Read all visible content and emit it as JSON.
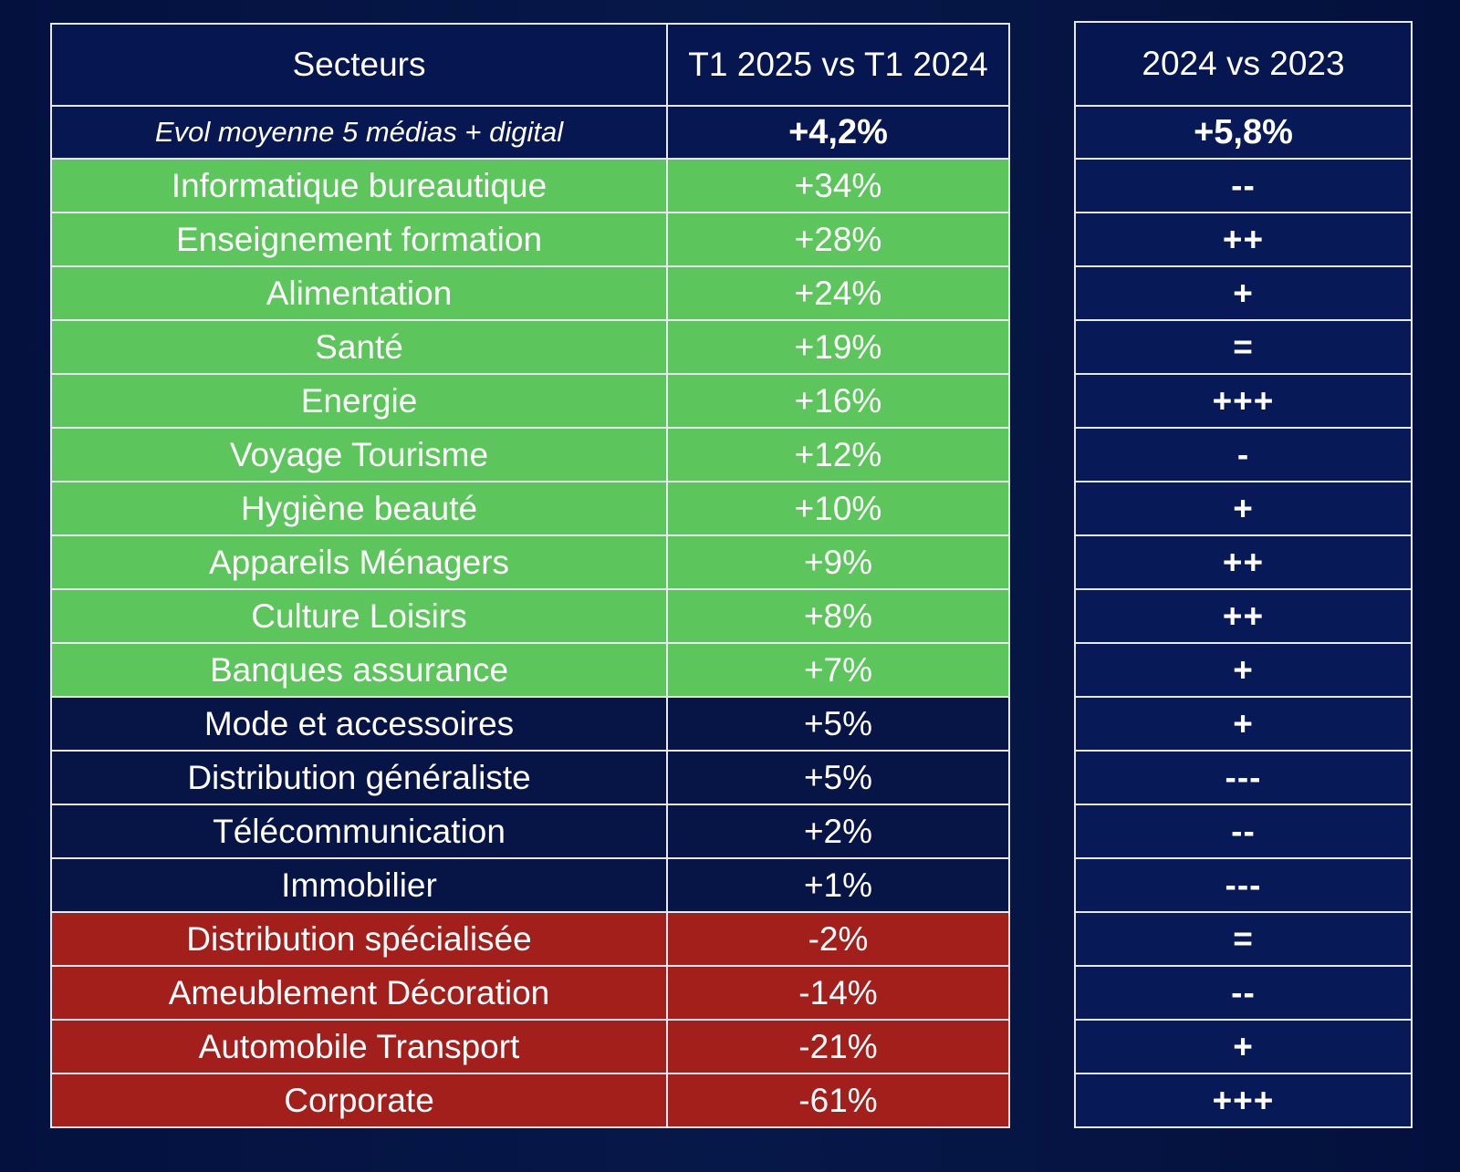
{
  "colors": {
    "background": "#061547",
    "positive": "#5cc55b",
    "neutral": "#061546",
    "negative": "#a21f1c",
    "border": "#e6e8f2",
    "text": "#ffffff"
  },
  "table": {
    "headers": {
      "sector": "Secteurs",
      "q1_compare": "T1 2025 vs T1 2024",
      "year_compare": "2024 vs 2023"
    },
    "average": {
      "label": "Evol moyenne 5 médias + digital",
      "q1_value": "+4,2%",
      "year_value": "+5,8%"
    },
    "rows": [
      {
        "sector": "Informatique bureautique",
        "q1": "+34%",
        "year": "--",
        "status": "green"
      },
      {
        "sector": "Enseignement formation",
        "q1": "+28%",
        "year": "++",
        "status": "green"
      },
      {
        "sector": "Alimentation",
        "q1": "+24%",
        "year": "+",
        "status": "green"
      },
      {
        "sector": "Santé",
        "q1": "+19%",
        "year": "=",
        "status": "green"
      },
      {
        "sector": "Energie",
        "q1": "+16%",
        "year": "+++",
        "status": "green"
      },
      {
        "sector": "Voyage Tourisme",
        "q1": "+12%",
        "year": "-",
        "status": "green"
      },
      {
        "sector": "Hygiène beauté",
        "q1": "+10%",
        "year": "+",
        "status": "green"
      },
      {
        "sector": "Appareils Ménagers",
        "q1": "+9%",
        "year": "++",
        "status": "green"
      },
      {
        "sector": "Culture Loisirs",
        "q1": "+8%",
        "year": "++",
        "status": "green"
      },
      {
        "sector": "Banques assurance",
        "q1": "+7%",
        "year": "+",
        "status": "green"
      },
      {
        "sector": "Mode et accessoires",
        "q1": "+5%",
        "year": "+",
        "status": "navy"
      },
      {
        "sector": "Distribution généraliste",
        "q1": "+5%",
        "year": "---",
        "status": "navy"
      },
      {
        "sector": "Télécommunication",
        "q1": "+2%",
        "year": "--",
        "status": "navy"
      },
      {
        "sector": "Immobilier",
        "q1": "+1%",
        "year": "---",
        "status": "navy"
      },
      {
        "sector": "Distribution spécialisée",
        "q1": "-2%",
        "year": "=",
        "status": "red"
      },
      {
        "sector": "Ameublement Décoration",
        "q1": "-14%",
        "year": "--",
        "status": "red"
      },
      {
        "sector": "Automobile Transport",
        "q1": "-21%",
        "year": "+",
        "status": "red"
      },
      {
        "sector": "Corporate",
        "q1": "-61%",
        "year": "+++",
        "status": "red"
      }
    ]
  }
}
